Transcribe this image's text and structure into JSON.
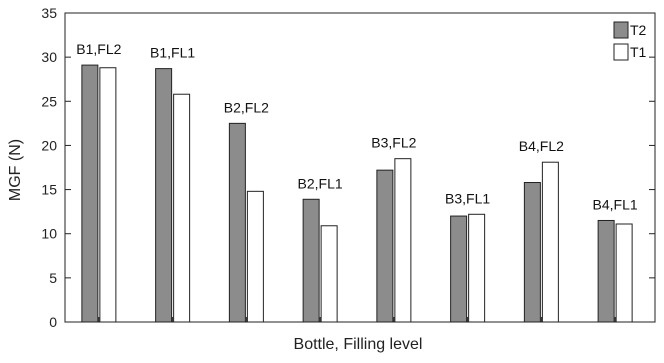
{
  "chart_data": {
    "type": "bar",
    "categories": [
      "B1,FL2",
      "B1,FL1",
      "B2,FL2",
      "B2,FL1",
      "B3,FL2",
      "B3,FL1",
      "B4,FL2",
      "B4,FL1"
    ],
    "series": [
      {
        "name": "T2",
        "values": [
          29.1,
          28.7,
          22.5,
          13.9,
          17.2,
          12.0,
          15.8,
          11.5
        ],
        "color": "#8c8c8c"
      },
      {
        "name": "T1",
        "values": [
          28.8,
          25.8,
          14.8,
          10.9,
          18.5,
          12.2,
          18.1,
          11.1
        ],
        "color": "#ffffff"
      }
    ],
    "xlabel": "Bottle, Filling level",
    "ylabel": "MGF (N)",
    "ylim": [
      0,
      35
    ],
    "yticks": [
      0,
      5,
      10,
      15,
      20,
      25,
      30,
      35
    ],
    "grid": false,
    "legend_position": "top-right"
  }
}
